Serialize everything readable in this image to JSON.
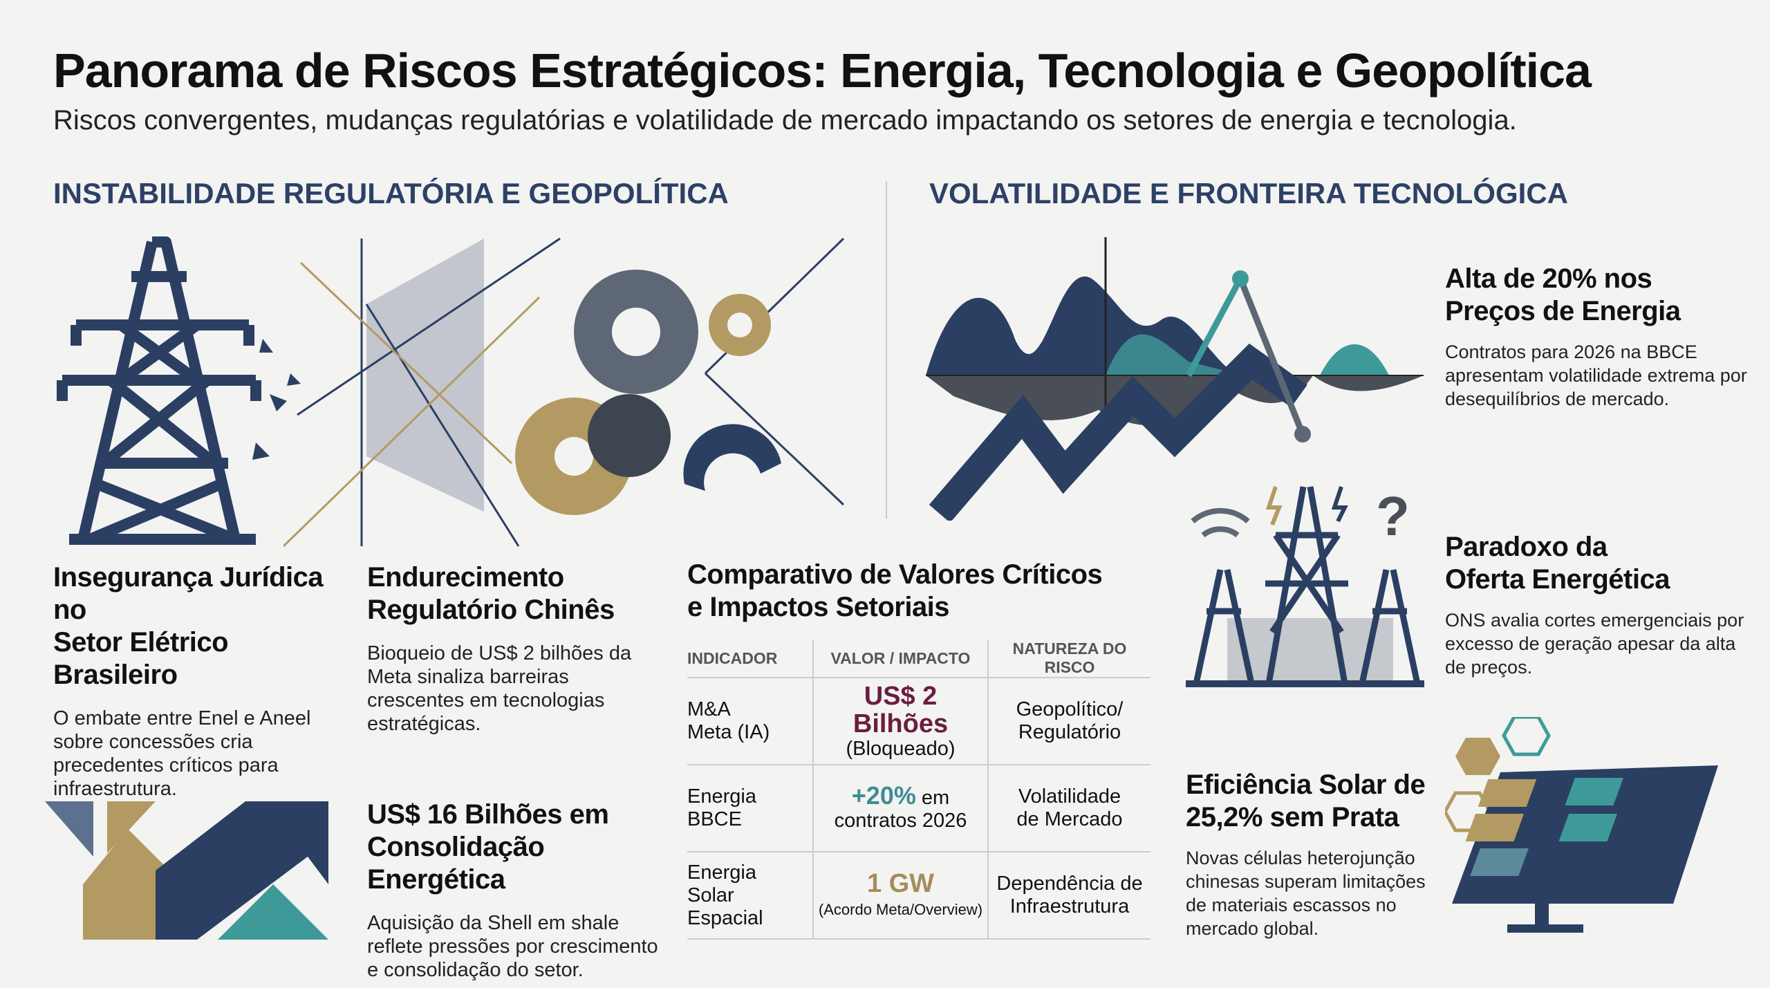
{
  "header": {
    "title": "Panorama de Riscos Estratégicos: Energia, Tecnologia e Geopolítica",
    "subtitle": "Riscos convergentes, mudanças regulatórias e volatilidade de mercado impactando os setores de energia e tecnologia."
  },
  "sections": {
    "left_title": "INSTABILIDADE REGULATÓRIA E GEOPOLÍTICA",
    "right_title": "VOLATILIDADE E FRONTEIRA TECNOLÓGICA"
  },
  "cards": {
    "brazil": {
      "title_1": "Insegurança Jurídica no",
      "title_2": "Setor Elétrico Brasileiro",
      "body": "O embate entre Enel e Aneel sobre concessões cria precedentes críticos para infraestrutura."
    },
    "china": {
      "title_1": "Endurecimento",
      "title_2": "Regulatório Chinês",
      "body": "Bioqueio de US$ 2 bilhões da Meta sinaliza barreiras crescentes em tecnologias estratégicas."
    },
    "shell": {
      "title_1": "US$ 16 Bilhões em",
      "title_2": "Consolidação Energética",
      "body": "Aquisição da Shell em shale reflete pressões por crescimento e consolidação do setor."
    },
    "prices": {
      "title_1": "Alta de 20% nos",
      "title_2": "Preços de Energia",
      "body": "Contratos para 2026 na BBCE apresentam volatilidade extrema por desequilíbrios de mercado."
    },
    "paradox": {
      "title_1": "Paradoxo da",
      "title_2": "Oferta Energética",
      "body": "ONS avalia cortes emergenciais por excesso de geração apesar da alta de preços."
    },
    "solar": {
      "title_1": "Eficiência Solar de",
      "title_2": "25,2% sem Prata",
      "body": "Novas células heterojunção chinesas superam limitações de materiais escassos no mercado global."
    }
  },
  "table": {
    "title_1": "Comparativo de Valores Críticos",
    "title_2": "e Impactos Setoriais",
    "headers": [
      "INDICADOR",
      "VALOR / IMPACTO",
      "NATUREZA DO RISCO"
    ],
    "rows": [
      {
        "ind_1": "M&A",
        "ind_2": "Meta (IA)",
        "val_main": "US$ 2 Bilhões",
        "val_sub": "(Bloqueado)",
        "nat_1": "Geopolítico/",
        "nat_2": "Regulatório",
        "color": "#6b1d3f"
      },
      {
        "ind_1": "Energia",
        "ind_2": "BBCE",
        "val_main": "+20%",
        "val_main_suffix": " em",
        "val_sub": "contratos 2026",
        "nat_1": "Volatilidade",
        "nat_2": "de Mercado",
        "color": "#3e8d92"
      },
      {
        "ind_1": "Energia",
        "ind_2": "Solar Espacial",
        "val_main": "1 GW",
        "val_sub": "(Acordo Meta/Overview)",
        "nat_1": "Dependência de",
        "nat_2": "Infraestrutura",
        "color": "#a58c5c"
      }
    ]
  },
  "colors": {
    "navy": "#2b3f63",
    "gold": "#b39a62",
    "teal": "#3e9a98",
    "slate": "#5d6775",
    "heading": "#2d4166"
  },
  "icons": [
    "transmission-tower-icon",
    "gears-icon",
    "wave-chart-icon",
    "towers-wifi-icon",
    "solar-panel-icon",
    "geometric-arrow-icon"
  ]
}
